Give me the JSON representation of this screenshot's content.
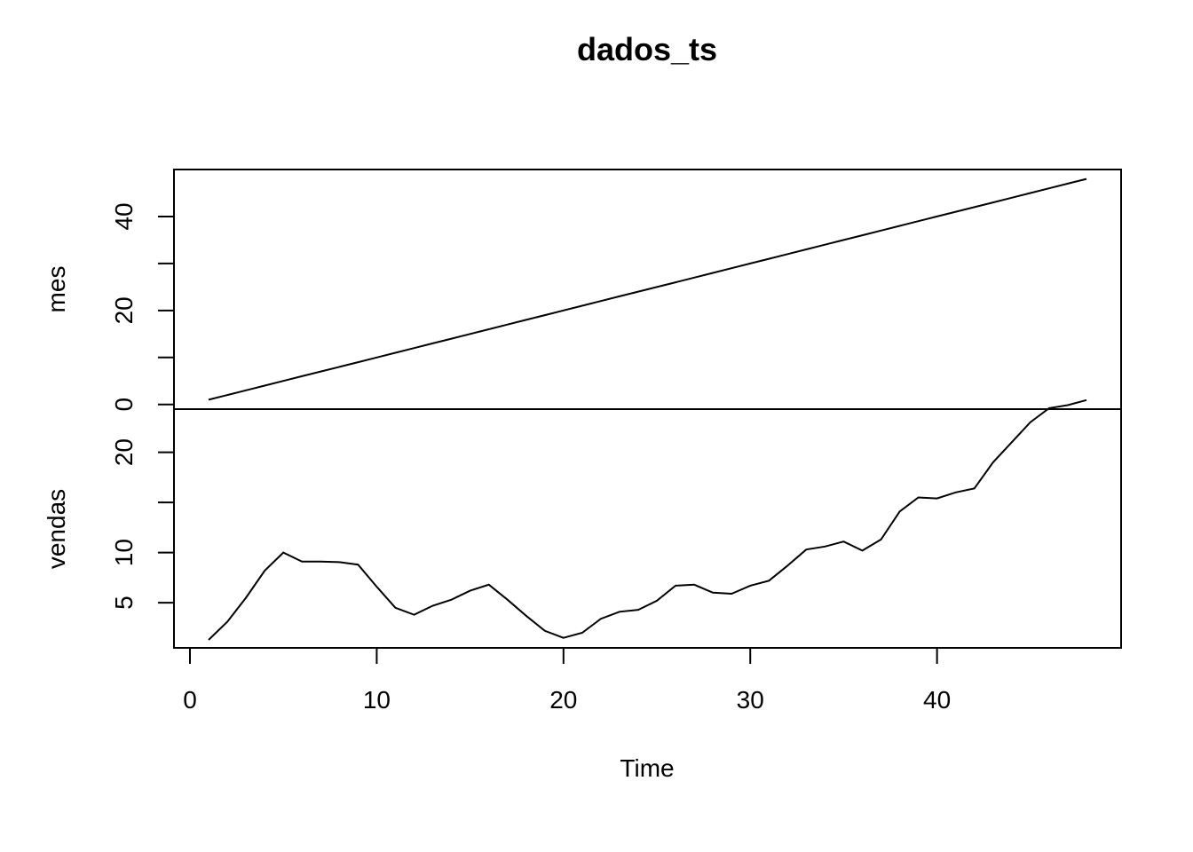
{
  "chart_data": {
    "type": "line",
    "title": "dados_ts",
    "xlabel": "Time",
    "xlim": [
      0,
      49
    ],
    "x_ticks": [
      0,
      10,
      20,
      30,
      40
    ],
    "x": [
      1,
      2,
      3,
      4,
      5,
      6,
      7,
      8,
      9,
      10,
      11,
      12,
      13,
      14,
      15,
      16,
      17,
      18,
      19,
      20,
      21,
      22,
      23,
      24,
      25,
      26,
      27,
      28,
      29,
      30,
      31,
      32,
      33,
      34,
      35,
      36,
      37,
      38,
      39,
      40,
      41,
      42,
      43,
      44,
      45,
      46,
      47,
      48
    ],
    "panels": [
      {
        "ylabel": "mes",
        "ylim": [
          -1,
          50
        ],
        "y_ticks": [
          0,
          10,
          20,
          30,
          40
        ],
        "y_tick_labels": [
          "0",
          "",
          "20",
          "",
          "40"
        ],
        "values": [
          1,
          2,
          3,
          4,
          5,
          6,
          7,
          8,
          9,
          10,
          11,
          12,
          13,
          14,
          15,
          16,
          17,
          18,
          19,
          20,
          21,
          22,
          23,
          24,
          25,
          26,
          27,
          28,
          29,
          30,
          31,
          32,
          33,
          34,
          35,
          36,
          37,
          38,
          39,
          40,
          41,
          42,
          43,
          44,
          45,
          46,
          47,
          48
        ]
      },
      {
        "ylabel": "vendas",
        "ylim": [
          0.5,
          24.3
        ],
        "y_ticks": [
          5,
          10,
          15,
          20
        ],
        "y_tick_labels": [
          "5",
          "10",
          "",
          "20"
        ],
        "values": [
          1.3,
          3.1,
          5.5,
          8.2,
          10.0,
          9.1,
          9.1,
          9.05,
          8.8,
          6.6,
          4.5,
          3.8,
          4.7,
          5.3,
          6.2,
          6.8,
          5.3,
          3.7,
          2.2,
          1.5,
          2.0,
          3.4,
          4.1,
          4.3,
          5.2,
          6.7,
          6.8,
          6.0,
          5.9,
          6.7,
          7.2,
          8.7,
          10.3,
          10.6,
          11.1,
          10.2,
          11.3,
          14.1,
          15.5,
          15.4,
          16.0,
          16.4,
          19.0,
          21.0,
          23.0,
          24.4,
          24.7,
          25.2
        ]
      }
    ]
  }
}
